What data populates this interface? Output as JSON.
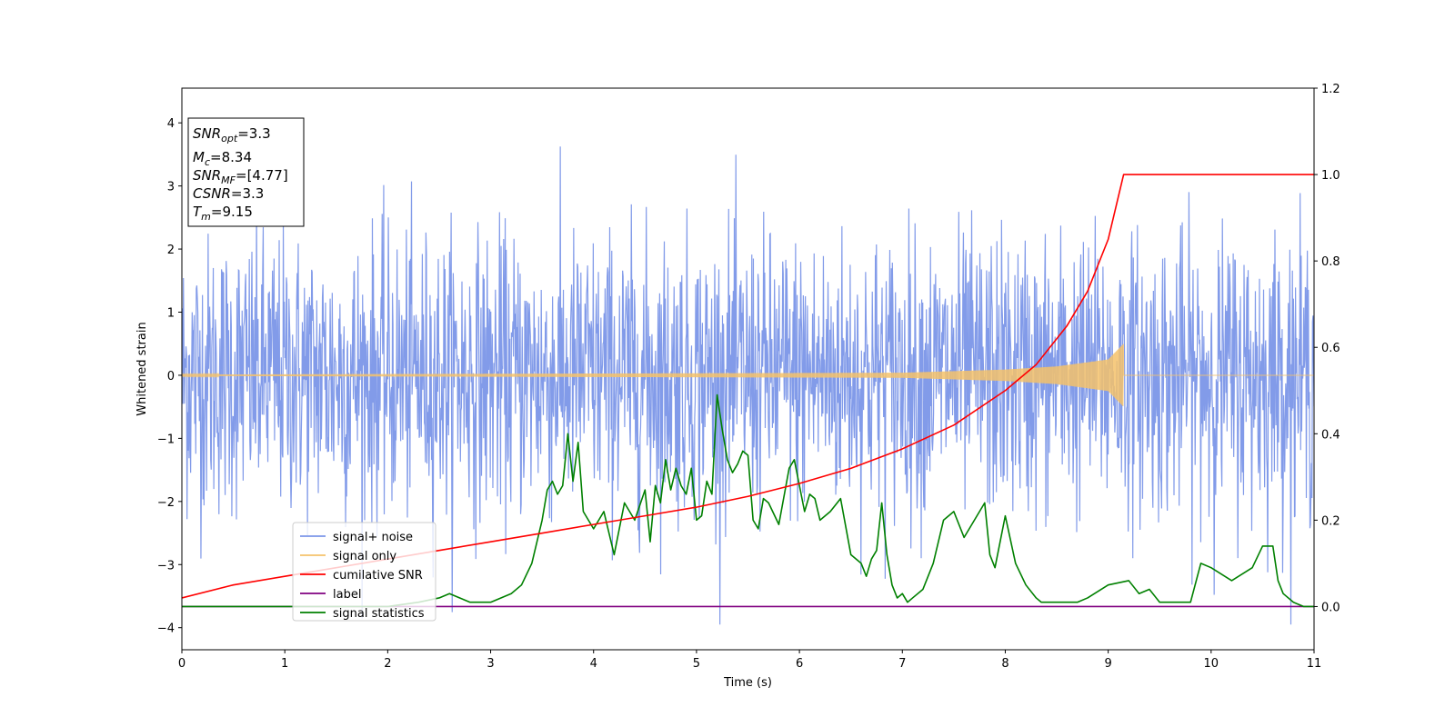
{
  "chart_data": {
    "type": "line",
    "xlabel": "Time (s)",
    "ylabel": "Whitened strain",
    "xlim": [
      0,
      11
    ],
    "ylim_left": [
      -4.35,
      4.55
    ],
    "ylim_right": [
      -0.1,
      1.2
    ],
    "x_ticks": [
      0,
      1,
      2,
      3,
      4,
      5,
      6,
      7,
      8,
      9,
      10,
      11
    ],
    "y_ticks_left": [
      -4,
      -3,
      -2,
      -1,
      0,
      1,
      2,
      3,
      4
    ],
    "y_ticks_right": [
      0.0,
      0.2,
      0.4,
      0.6,
      0.8,
      1.0,
      1.2
    ],
    "y_tick_labels_right": [
      "0.0",
      "0.2",
      "0.4",
      "0.6",
      "0.8",
      "1.0",
      "1.2"
    ],
    "legend_position": "lower-left",
    "grid": false,
    "info_box": {
      "snr_opt_value": "=3.3",
      "mc_value": "=8.34",
      "snr_mf_value": "=[4.77]",
      "csnr_value": "=3.3",
      "tm_value": "=9.15"
    },
    "series": [
      {
        "name": "signal+ noise",
        "axis": "left",
        "color": "#7b96e8",
        "description_kind": "noise",
        "sigma": 0.82,
        "x_range": [
          0,
          11
        ],
        "n_points": 2200
      },
      {
        "name": "signal only",
        "axis": "left",
        "color": "#f5c26b",
        "chirp_end": 9.15,
        "amplitude_at_x": [
          [
            0,
            0.01
          ],
          [
            7,
            0.04
          ],
          [
            8,
            0.09
          ],
          [
            8.5,
            0.14
          ],
          [
            9.0,
            0.25
          ],
          [
            9.15,
            0.5
          ]
        ]
      },
      {
        "name": "cumilative SNR",
        "axis": "right",
        "color": "#ff0000",
        "x": [
          0,
          0.5,
          1,
          1.5,
          2,
          2.5,
          3,
          3.5,
          4,
          4.5,
          5,
          5.5,
          6,
          6.5,
          7,
          7.5,
          8,
          8.3,
          8.6,
          8.8,
          9.0,
          9.1,
          9.15,
          11
        ],
        "y": [
          0.02,
          0.05,
          0.07,
          0.09,
          0.11,
          0.13,
          0.15,
          0.17,
          0.19,
          0.21,
          0.23,
          0.255,
          0.285,
          0.32,
          0.365,
          0.42,
          0.5,
          0.56,
          0.65,
          0.73,
          0.85,
          0.95,
          1.0,
          1.0
        ]
      },
      {
        "name": "label",
        "axis": "right",
        "color": "#800080",
        "x": [
          0,
          11
        ],
        "y": [
          0.0,
          0.0
        ]
      },
      {
        "name": "signal statistics",
        "axis": "right",
        "color": "#008000",
        "x": [
          0,
          0.5,
          1,
          1.5,
          2,
          2.3,
          2.5,
          2.6,
          2.7,
          2.8,
          3.0,
          3.2,
          3.3,
          3.4,
          3.5,
          3.55,
          3.6,
          3.65,
          3.7,
          3.75,
          3.8,
          3.85,
          3.9,
          3.95,
          4.0,
          4.1,
          4.2,
          4.3,
          4.4,
          4.5,
          4.55,
          4.6,
          4.65,
          4.7,
          4.75,
          4.8,
          4.85,
          4.9,
          4.95,
          5.0,
          5.05,
          5.1,
          5.15,
          5.2,
          5.25,
          5.3,
          5.35,
          5.4,
          5.45,
          5.5,
          5.55,
          5.6,
          5.65,
          5.7,
          5.8,
          5.9,
          5.95,
          6.0,
          6.05,
          6.1,
          6.15,
          6.2,
          6.3,
          6.4,
          6.5,
          6.6,
          6.65,
          6.7,
          6.75,
          6.8,
          6.85,
          6.9,
          6.95,
          7.0,
          7.05,
          7.1,
          7.2,
          7.3,
          7.4,
          7.5,
          7.6,
          7.7,
          7.8,
          7.85,
          7.9,
          8.0,
          8.1,
          8.2,
          8.3,
          8.35,
          8.4,
          8.5,
          8.6,
          8.7,
          8.8,
          9.0,
          9.2,
          9.3,
          9.4,
          9.5,
          9.55,
          9.6,
          9.7,
          9.8,
          9.9,
          10.0,
          10.2,
          10.4,
          10.5,
          10.6,
          10.65,
          10.7,
          10.8,
          10.9,
          11.0
        ],
        "y": [
          0.0,
          0.0,
          0.0,
          0.0,
          0.0,
          0.01,
          0.02,
          0.03,
          0.02,
          0.01,
          0.01,
          0.03,
          0.05,
          0.1,
          0.2,
          0.27,
          0.29,
          0.26,
          0.28,
          0.4,
          0.29,
          0.38,
          0.22,
          0.2,
          0.18,
          0.22,
          0.12,
          0.24,
          0.2,
          0.27,
          0.15,
          0.28,
          0.24,
          0.34,
          0.27,
          0.32,
          0.28,
          0.26,
          0.32,
          0.2,
          0.21,
          0.29,
          0.26,
          0.49,
          0.41,
          0.34,
          0.31,
          0.33,
          0.36,
          0.35,
          0.2,
          0.18,
          0.25,
          0.24,
          0.19,
          0.32,
          0.34,
          0.28,
          0.22,
          0.26,
          0.25,
          0.2,
          0.22,
          0.25,
          0.12,
          0.1,
          0.07,
          0.11,
          0.13,
          0.24,
          0.12,
          0.05,
          0.02,
          0.03,
          0.01,
          0.02,
          0.04,
          0.1,
          0.2,
          0.22,
          0.16,
          0.2,
          0.24,
          0.12,
          0.09,
          0.21,
          0.1,
          0.05,
          0.02,
          0.01,
          0.01,
          0.01,
          0.01,
          0.01,
          0.02,
          0.05,
          0.06,
          0.03,
          0.04,
          0.01,
          0.01,
          0.01,
          0.01,
          0.01,
          0.1,
          0.09,
          0.06,
          0.09,
          0.14,
          0.14,
          0.06,
          0.03,
          0.01,
          0.0,
          0.0
        ]
      }
    ]
  }
}
